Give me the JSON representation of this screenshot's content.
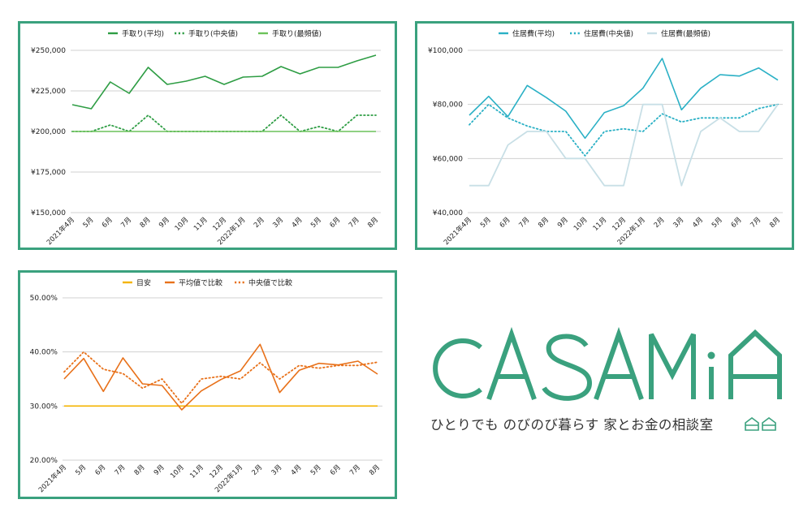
{
  "colors": {
    "frame": "#3aa17e",
    "brand": "#3aa17e",
    "grid": "#d0d0d0",
    "text": "#222222"
  },
  "brand": {
    "logo_text": "CASAMiA",
    "tagline": "ひとりでも のびのび暮らす 家とお金の相談室"
  },
  "chart_data": [
    {
      "type": "line",
      "title": "",
      "categories": [
        "2021年4月",
        "5月",
        "6月",
        "7月",
        "8月",
        "9月",
        "10月",
        "11月",
        "12月",
        "2022年1月",
        "2月",
        "3月",
        "4月",
        "5月",
        "6月",
        "7月",
        "8月"
      ],
      "ylim": [
        150000,
        250000
      ],
      "yticks": [
        150000,
        175000,
        200000,
        225000,
        250000
      ],
      "ytick_labels": [
        "¥150,000",
        "¥175,000",
        "¥200,000",
        "¥225,000",
        "¥250,000"
      ],
      "legend": "top",
      "series": [
        {
          "name": "手取り(平均)",
          "color": "#2e9d44",
          "dash": "solid",
          "values": [
            216500,
            214000,
            230500,
            223500,
            239500,
            229000,
            231000,
            234000,
            229000,
            233500,
            234000,
            240000,
            235500,
            239500,
            239500,
            243500,
            247000
          ]
        },
        {
          "name": "手取り(中央値)",
          "color": "#2e9d44",
          "dash": "dotted",
          "values": [
            200000,
            200000,
            204000,
            200000,
            210000,
            200000,
            200000,
            200000,
            200000,
            200000,
            200000,
            210000,
            200000,
            203000,
            200000,
            210000,
            210000
          ]
        },
        {
          "name": "手取り(最頻値)",
          "color": "#6cc25a",
          "dash": "solid",
          "values": [
            200000,
            200000,
            200000,
            200000,
            200000,
            200000,
            200000,
            200000,
            200000,
            200000,
            200000,
            200000,
            200000,
            200000,
            200000,
            200000,
            200000
          ]
        }
      ]
    },
    {
      "type": "line",
      "title": "",
      "categories": [
        "2021年4月",
        "5月",
        "6月",
        "7月",
        "8月",
        "9月",
        "10月",
        "11月",
        "12月",
        "2022年1月",
        "2月",
        "3月",
        "4月",
        "5月",
        "6月",
        "7月",
        "8月"
      ],
      "ylim": [
        40000,
        100000
      ],
      "yticks": [
        40000,
        60000,
        80000,
        100000
      ],
      "ytick_labels": [
        "¥40,000",
        "¥60,000",
        "¥80,000",
        "¥100,000"
      ],
      "legend": "top",
      "series": [
        {
          "name": "住居費(平均)",
          "color": "#2ab0c5",
          "dash": "solid",
          "values": [
            76000,
            83000,
            75500,
            87000,
            82500,
            77500,
            67500,
            77000,
            79500,
            86000,
            97000,
            78000,
            86000,
            91000,
            90500,
            93500,
            89000
          ]
        },
        {
          "name": "住居費(中央値)",
          "color": "#2ab0c5",
          "dash": "dotted",
          "values": [
            72500,
            80000,
            75000,
            72000,
            70000,
            70000,
            61000,
            70000,
            71000,
            70000,
            76500,
            73500,
            75000,
            75000,
            75000,
            78500,
            80000
          ]
        },
        {
          "name": "住居費(最頻値)",
          "color": "#c8dfe6",
          "dash": "solid",
          "values": [
            50000,
            50000,
            65000,
            70000,
            70000,
            60000,
            60000,
            50000,
            50000,
            80000,
            80000,
            50000,
            70000,
            75000,
            70000,
            70000,
            80000
          ]
        }
      ]
    },
    {
      "type": "line",
      "title": "",
      "categories": [
        "2021年4月",
        "5月",
        "6月",
        "7月",
        "8月",
        "9月",
        "10月",
        "11月",
        "12月",
        "2022年1月",
        "2月",
        "3月",
        "4月",
        "5月",
        "6月",
        "7月",
        "8月"
      ],
      "ylim": [
        20,
        50
      ],
      "yticks": [
        20,
        30,
        40,
        50
      ],
      "ytick_labels": [
        "20.00%",
        "30.00%",
        "40.00%",
        "50.00%"
      ],
      "legend": "top",
      "series": [
        {
          "name": "目安",
          "color": "#f4b400",
          "dash": "solid",
          "values": [
            30,
            30,
            30,
            30,
            30,
            30,
            30,
            30,
            30,
            30,
            30,
            30,
            30,
            30,
            30,
            30,
            30
          ]
        },
        {
          "name": "平均値で比較",
          "color": "#e8711a",
          "dash": "solid",
          "values": [
            35.0,
            38.8,
            32.7,
            38.9,
            34.1,
            33.8,
            29.3,
            32.8,
            34.9,
            36.5,
            41.4,
            32.5,
            36.6,
            37.9,
            37.6,
            38.3,
            35.9
          ]
        },
        {
          "name": "中央値で比較",
          "color": "#e8711a",
          "dash": "dotted",
          "values": [
            36.3,
            40.0,
            36.8,
            36.0,
            33.3,
            35.0,
            30.5,
            35.0,
            35.5,
            35.0,
            38.0,
            35.0,
            37.5,
            37.0,
            37.5,
            37.5,
            38.1
          ]
        }
      ]
    }
  ]
}
